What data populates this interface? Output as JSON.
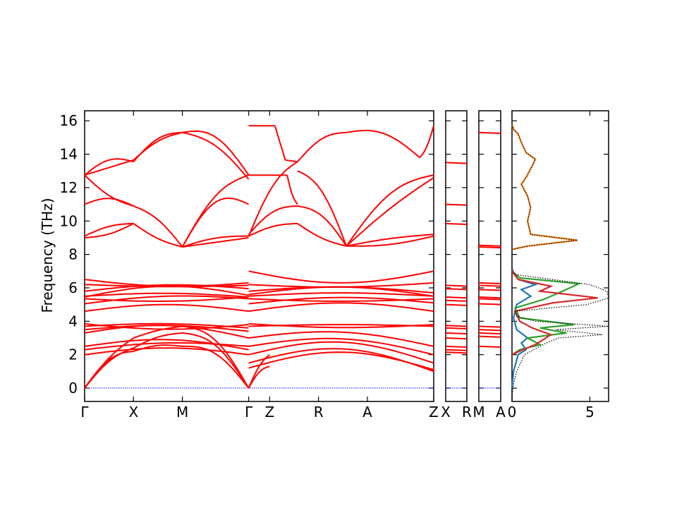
{
  "chart_data": {
    "type": "line",
    "ylabel": "Frequency (THz)",
    "ylim": [
      -0.8,
      16.6
    ],
    "yticks": [
      0,
      2,
      4,
      6,
      8,
      10,
      12,
      14,
      16
    ],
    "line_color": "#ff0000",
    "zero_line_color": "#0000ff",
    "bands": {
      "main": {
        "segments": [
          {
            "from": "Γ",
            "to": "X",
            "x": [
              0.0,
              0.14
            ]
          },
          {
            "from": "X",
            "to": "M",
            "x": [
              0.14,
              0.28
            ]
          },
          {
            "from": "M",
            "to": "Γ",
            "x": [
              0.28,
              0.47
            ]
          },
          {
            "from": "Z",
            "to": "R",
            "x": [
              0.47,
              0.61
            ]
          },
          {
            "from": "R",
            "to": "A",
            "x": [
              0.61,
              0.75
            ]
          },
          {
            "from": "A",
            "to": "Z",
            "x": [
              0.75,
              1.0
            ]
          }
        ],
        "tick_labels": [
          {
            "x": 0.0,
            "label": "Γ"
          },
          {
            "x": 0.14,
            "label": "X"
          },
          {
            "x": 0.28,
            "label": "M"
          },
          {
            "x": 0.47,
            "label": "Γ"
          },
          {
            "x": 0.53,
            "label": "Z"
          },
          {
            "x": 0.67,
            "label": "R"
          },
          {
            "x": 0.81,
            "label": "A"
          },
          {
            "x": 1.0,
            "label": "Z"
          }
        ],
        "upper_manifold_endpoints_thz": {
          "gamma": [
            9.0,
            9.1,
            11.0,
            12.75,
            12.75,
            12.75
          ],
          "X": [
            9.85,
            10.9,
            13.55,
            13.65
          ],
          "M": [
            8.45,
            8.45,
            15.3,
            15.3
          ],
          "Z": [
            9.1,
            9.2,
            12.75,
            12.75,
            15.7
          ],
          "A": [
            8.5,
            8.5,
            15.3,
            15.3
          ]
        },
        "mid_manifold_thz": [
          4.6,
          5.05,
          5.35,
          5.5,
          5.8,
          6.2,
          6.5,
          7.0
        ],
        "low_manifold_thz": [
          2.0,
          2.3,
          2.5,
          3.0,
          3.3,
          3.5,
          3.7,
          3.85
        ]
      },
      "X_R": {
        "label_left": "X",
        "label_right": "R",
        "levels_thz": [
          0.0,
          2.15,
          2.3,
          2.5,
          3.0,
          3.3,
          3.6,
          3.75,
          5.0,
          5.25,
          5.45,
          5.95,
          6.15,
          9.85,
          11.0,
          13.5
        ]
      },
      "M_A": {
        "label_left": "M",
        "label_right": "A",
        "levels_thz": [
          0.0,
          2.5,
          3.1,
          3.3,
          3.5,
          3.7,
          5.05,
          5.35,
          5.45,
          5.9,
          6.15,
          6.3,
          8.45,
          8.55,
          15.3
        ]
      }
    },
    "dos": {
      "xlim": [
        0,
        6.2
      ],
      "xticks": [
        0,
        5
      ],
      "series": [
        {
          "color": "#000000",
          "style": "dotted",
          "points": [
            [
              0,
              -0.8
            ],
            [
              0.05,
              0
            ],
            [
              0.3,
              1.0
            ],
            [
              0.8,
              2.0
            ],
            [
              1.6,
              2.4
            ],
            [
              2.2,
              2.7
            ],
            [
              3.0,
              3.0
            ],
            [
              5.8,
              3.2
            ],
            [
              2.8,
              3.5
            ],
            [
              6.2,
              3.7
            ],
            [
              1.5,
              4.0
            ],
            [
              0.3,
              4.3
            ],
            [
              0.2,
              4.6
            ],
            [
              4.8,
              5.0
            ],
            [
              6.2,
              5.4
            ],
            [
              6.1,
              5.8
            ],
            [
              5.0,
              6.2
            ],
            [
              0.2,
              6.8
            ],
            [
              0,
              7.2
            ],
            [
              0,
              8.3
            ],
            [
              1.0,
              8.5
            ],
            [
              4.2,
              8.85
            ],
            [
              1.2,
              9.2
            ],
            [
              1.0,
              10.0
            ],
            [
              1.2,
              10.8
            ],
            [
              1.0,
              11.5
            ],
            [
              0.6,
              12.2
            ],
            [
              0.9,
              12.6
            ],
            [
              1.3,
              13.3
            ],
            [
              1.5,
              13.7
            ],
            [
              0.9,
              14.1
            ],
            [
              0.6,
              14.7
            ],
            [
              0.4,
              15.2
            ],
            [
              0.1,
              15.5
            ],
            [
              0,
              15.8
            ]
          ]
        },
        {
          "color": "#ff7f0e",
          "style": "solid",
          "points": [
            [
              0,
              8.3
            ],
            [
              1.0,
              8.5
            ],
            [
              4.2,
              8.85
            ],
            [
              1.2,
              9.2
            ],
            [
              1.0,
              10.0
            ],
            [
              1.2,
              10.8
            ],
            [
              1.0,
              11.5
            ],
            [
              0.6,
              12.2
            ],
            [
              0.9,
              12.6
            ],
            [
              1.3,
              13.3
            ],
            [
              1.5,
              13.7
            ],
            [
              0.9,
              14.1
            ],
            [
              0.6,
              14.7
            ],
            [
              0.4,
              15.2
            ],
            [
              0.1,
              15.5
            ],
            [
              0,
              15.8
            ]
          ]
        },
        {
          "color": "#1f77b4",
          "style": "solid",
          "points": [
            [
              0,
              0
            ],
            [
              0.1,
              1.0
            ],
            [
              0.4,
              2.0
            ],
            [
              0.9,
              2.3
            ],
            [
              0.6,
              2.7
            ],
            [
              1.0,
              3.0
            ],
            [
              0.3,
              3.5
            ],
            [
              0.1,
              4.2
            ],
            [
              0.3,
              5.0
            ],
            [
              1.2,
              5.5
            ],
            [
              0.6,
              5.9
            ],
            [
              1.5,
              6.2
            ],
            [
              0.4,
              6.5
            ],
            [
              0,
              7.0
            ]
          ]
        },
        {
          "color": "#2ca02c",
          "style": "solid",
          "points": [
            [
              0,
              2.0
            ],
            [
              0.5,
              2.3
            ],
            [
              1.8,
              2.6
            ],
            [
              1.0,
              3.0
            ],
            [
              3.5,
              3.3
            ],
            [
              1.8,
              3.6
            ],
            [
              4.0,
              3.8
            ],
            [
              0.5,
              4.2
            ],
            [
              0.2,
              4.8
            ],
            [
              2.0,
              5.3
            ],
            [
              3.0,
              5.7
            ],
            [
              4.3,
              6.25
            ],
            [
              0.5,
              6.6
            ],
            [
              0,
              7.0
            ]
          ]
        },
        {
          "color": "#d62728",
          "style": "solid",
          "points": [
            [
              0,
              2.0
            ],
            [
              0.7,
              2.3
            ],
            [
              1.5,
              2.6
            ],
            [
              2.5,
              3.2
            ],
            [
              1.3,
              3.6
            ],
            [
              0.5,
              4.0
            ],
            [
              0.2,
              4.6
            ],
            [
              2.6,
              5.1
            ],
            [
              5.5,
              5.4
            ],
            [
              1.8,
              5.8
            ],
            [
              2.5,
              6.1
            ],
            [
              0.4,
              6.5
            ],
            [
              0,
              7.0
            ]
          ]
        }
      ]
    }
  }
}
